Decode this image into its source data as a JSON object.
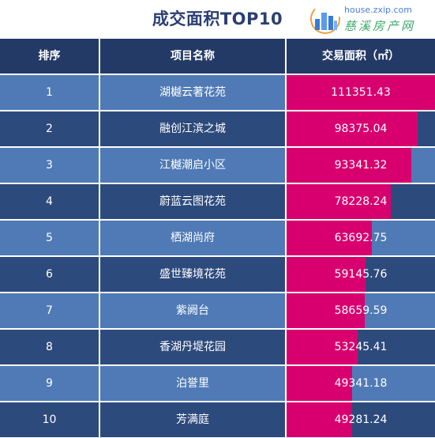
{
  "header": {
    "title": "成交面积TOP10",
    "logo_url": "house.zxip.com",
    "logo_name": "慈溪房产网"
  },
  "table": {
    "columns": [
      "排序",
      "项目名称",
      "交易面积（㎡）"
    ]
  },
  "colors": {
    "header_bg": "#243a66",
    "row_dark": "#2d4a7c",
    "row_light": "#4f7ab6",
    "bar": "#d8006f",
    "title": "#2b3e73"
  },
  "chart_data": {
    "type": "table",
    "title": "成交面积TOP10",
    "columns": [
      "排序",
      "项目名称",
      "交易面积（㎡）"
    ],
    "rows": [
      {
        "rank": "1",
        "name": "湖樾云著花苑",
        "area": 111351.43
      },
      {
        "rank": "2",
        "name": "融创江滨之城",
        "area": 98375.04
      },
      {
        "rank": "3",
        "name": "江樾潮启小区",
        "area": 93341.32
      },
      {
        "rank": "4",
        "name": "蔚蓝云图花苑",
        "area": 78228.24
      },
      {
        "rank": "5",
        "name": "栖湖尚府",
        "area": 63692.75
      },
      {
        "rank": "6",
        "name": "盛世臻境花苑",
        "area": 59145.76
      },
      {
        "rank": "7",
        "name": "紫阙台",
        "area": 58659.59
      },
      {
        "rank": "8",
        "name": "香湖丹堤花园",
        "area": 53245.41
      },
      {
        "rank": "9",
        "name": "泊誉里",
        "area": 49341.18
      },
      {
        "rank": "10",
        "name": "芳满庭",
        "area": 49281.24
      }
    ]
  }
}
